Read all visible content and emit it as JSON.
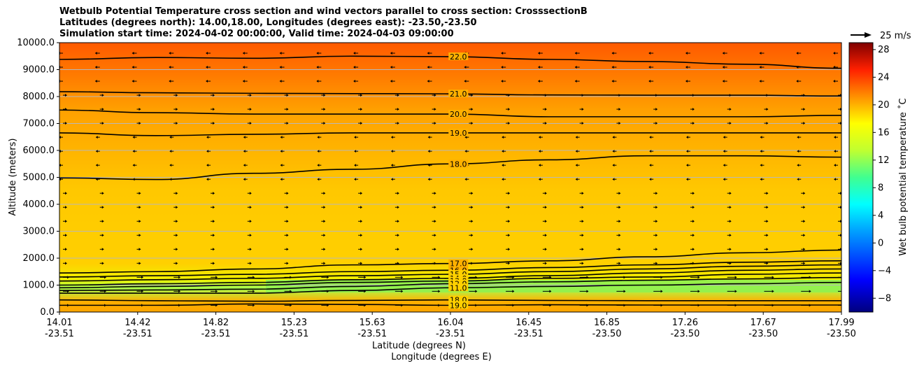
{
  "chart_data": {
    "type": "contour",
    "title_lines": [
      "Wetbulb Potential Temperature cross section and wind vectors parallel to cross section: CrosssectionB",
      "Latitudes (degrees north): 14.00,18.00, Longitudes (degrees east): -23.50,-23.50",
      "Simulation start time: 2024-04-02 00:00:00, Valid time: 2024-04-03 09:00:00"
    ],
    "ylabel": "Altitude (meters)",
    "xlabel": "Latitude (degrees N)",
    "xlabel2": "Longitude (degrees E)",
    "ylim": [
      0,
      10000
    ],
    "yticks": [
      "0.0",
      "1000.0",
      "2000.0",
      "3000.0",
      "4000.0",
      "5000.0",
      "6000.0",
      "7000.0",
      "8000.0",
      "9000.0",
      "10000.0"
    ],
    "xticks": [
      {
        "lat": "14.01",
        "lon": "-23.51"
      },
      {
        "lat": "14.42",
        "lon": "-23.51"
      },
      {
        "lat": "14.82",
        "lon": "-23.51"
      },
      {
        "lat": "15.23",
        "lon": "-23.51"
      },
      {
        "lat": "15.63",
        "lon": "-23.51"
      },
      {
        "lat": "16.04",
        "lon": "-23.51"
      },
      {
        "lat": "16.45",
        "lon": "-23.51"
      },
      {
        "lat": "16.85",
        "lon": "-23.50"
      },
      {
        "lat": "17.26",
        "lon": "-23.50"
      },
      {
        "lat": "17.67",
        "lon": "-23.50"
      },
      {
        "lat": "17.99",
        "lon": "-23.50"
      }
    ],
    "grid": "horizontal",
    "colorbar": {
      "label": "Wet bulb potential temperature ˚C",
      "range": [
        -10,
        29
      ],
      "ticks": [
        "−8",
        "−4",
        "0",
        "4",
        "8",
        "12",
        "16",
        "20",
        "24",
        "28"
      ],
      "colormap": "jet"
    },
    "quiver_key": "25 m/s",
    "contours": [
      {
        "level": 22,
        "label": "22.0",
        "x": [
          14.01,
          14.5,
          15.0,
          15.5,
          16.0,
          16.5,
          17.0,
          17.5,
          17.99
        ],
        "y": [
          9380,
          9450,
          9420,
          9500,
          9480,
          9380,
          9300,
          9200,
          9050
        ]
      },
      {
        "level": 21,
        "label": "21.0",
        "x": [
          14.01,
          14.5,
          15.0,
          15.5,
          16.0,
          16.5,
          17.0,
          17.5,
          17.99
        ],
        "y": [
          8180,
          8140,
          8120,
          8110,
          8100,
          8060,
          8050,
          8050,
          8020
        ]
      },
      {
        "level": 20,
        "label": "20.0",
        "x": [
          14.01,
          14.5,
          15.0,
          15.5,
          16.0,
          16.5,
          17.0,
          17.5,
          17.99
        ],
        "y": [
          7500,
          7400,
          7350,
          7350,
          7350,
          7250,
          7250,
          7250,
          7300
        ]
      },
      {
        "level": 19,
        "label": "19.0",
        "x": [
          14.01,
          14.5,
          15.0,
          15.5,
          16.0,
          16.5,
          17.0,
          17.5,
          17.99
        ],
        "y": [
          6650,
          6550,
          6600,
          6650,
          6650,
          6650,
          6650,
          6650,
          6650
        ]
      },
      {
        "level": 18,
        "label": "18.0",
        "x": [
          14.01,
          14.5,
          15.0,
          15.5,
          16.0,
          16.5,
          17.0,
          17.5,
          17.99
        ],
        "y": [
          4980,
          4920,
          5150,
          5300,
          5500,
          5650,
          5800,
          5800,
          5750
        ]
      },
      {
        "level": 17,
        "label": "17.0",
        "x": [
          14.01,
          14.5,
          15.0,
          15.5,
          16.0,
          16.5,
          17.0,
          17.5,
          17.99
        ],
        "y": [
          1450,
          1500,
          1600,
          1750,
          1800,
          1900,
          2050,
          2200,
          2300
        ]
      },
      {
        "level": 16,
        "label": "16.0",
        "x": [
          14.01,
          14.5,
          15.0,
          15.5,
          16.0,
          16.5,
          17.0,
          17.5,
          17.99
        ],
        "y": [
          1300,
          1350,
          1400,
          1500,
          1550,
          1650,
          1750,
          1850,
          1900
        ]
      },
      {
        "level": 15,
        "label": "15.0",
        "x": [
          14.01,
          14.5,
          15.0,
          15.5,
          16.0,
          16.5,
          17.0,
          17.5,
          17.99
        ],
        "y": [
          1150,
          1200,
          1250,
          1350,
          1400,
          1500,
          1600,
          1700,
          1750
        ]
      },
      {
        "level": 14,
        "label": "14.0",
        "x": [
          14.01,
          14.5,
          15.0,
          15.5,
          16.0,
          16.5,
          17.0,
          17.5,
          17.99
        ],
        "y": [
          1000,
          1050,
          1100,
          1200,
          1250,
          1350,
          1450,
          1550,
          1600
        ]
      },
      {
        "level": 13,
        "label": "13.0",
        "x": [
          14.01,
          14.5,
          15.0,
          15.5,
          16.0,
          16.5,
          17.0,
          17.5,
          17.99
        ],
        "y": [
          900,
          950,
          1000,
          1100,
          1150,
          1250,
          1300,
          1400,
          1450
        ]
      },
      {
        "level": 12,
        "label": "12.0",
        "x": [
          14.01,
          14.5,
          15.0,
          15.5,
          16.0,
          16.5,
          17.0,
          17.5,
          17.99
        ],
        "y": [
          800,
          820,
          850,
          950,
          1050,
          1120,
          1180,
          1230,
          1280
        ]
      },
      {
        "level": 11,
        "label": "11.0",
        "x": [
          14.01,
          14.5,
          15.0,
          15.5,
          16.0,
          16.5,
          17.0,
          17.5,
          17.99
        ],
        "y": [
          700,
          700,
          700,
          800,
          900,
          950,
          1000,
          1050,
          1100
        ]
      },
      {
        "level": 18,
        "label": "18.0",
        "x": [
          14.01,
          14.5,
          15.0,
          15.5,
          16.0,
          16.5,
          17.0,
          17.5,
          17.99
        ],
        "y": [
          450,
          420,
          400,
          430,
          450,
          430,
          420,
          420,
          420
        ]
      },
      {
        "level": 19,
        "label": "19.0",
        "x": [
          14.01,
          14.5,
          15.0,
          15.5,
          16.0,
          16.5,
          17.0,
          17.5,
          17.99
        ],
        "y": [
          250,
          250,
          300,
          280,
          250,
          270,
          260,
          260,
          260
        ]
      }
    ]
  }
}
